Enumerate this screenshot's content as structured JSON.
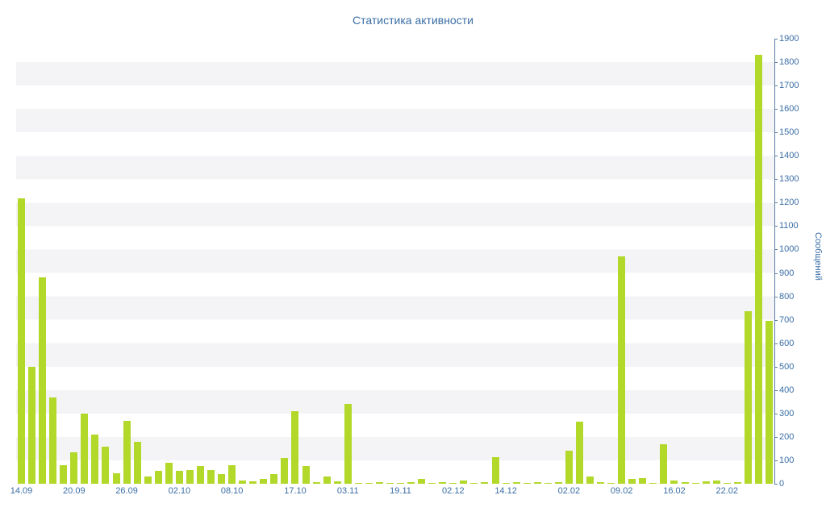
{
  "title": "Статистика активности",
  "colors": {
    "bar": "#b2d82a",
    "stripe": "#f4f4f7",
    "axis": "#5b7fa6",
    "text": "#3a6ea5",
    "background": "#ffffff"
  },
  "chart_data": {
    "type": "bar",
    "title": "Статистика активности",
    "xlabel": "",
    "ylabel": "Сообщений",
    "ylim": [
      0,
      1900
    ],
    "ytick_step": 100,
    "grid": "horizontal alternating stripes per 100 units",
    "legend": "none",
    "yticks": [
      0,
      100,
      200,
      300,
      400,
      500,
      600,
      700,
      800,
      900,
      1000,
      1100,
      1200,
      1300,
      1400,
      1500,
      1600,
      1700,
      1800,
      1900
    ],
    "values": [
      1220,
      500,
      880,
      370,
      80,
      135,
      300,
      210,
      160,
      45,
      270,
      180,
      30,
      55,
      90,
      55,
      60,
      75,
      60,
      40,
      80,
      15,
      10,
      20,
      40,
      110,
      310,
      75,
      8,
      30,
      10,
      340,
      5,
      4,
      6,
      4,
      5,
      6,
      20,
      4,
      6,
      4,
      15,
      4,
      6,
      115,
      5,
      8,
      4,
      6,
      5,
      8,
      140,
      265,
      30,
      8,
      4,
      970,
      20,
      25,
      5,
      170,
      15,
      6,
      4,
      10,
      15,
      4,
      6,
      735,
      1830,
      695
    ],
    "xticks": [
      {
        "index": 0,
        "label": "14.09"
      },
      {
        "index": 5,
        "label": "20.09"
      },
      {
        "index": 10,
        "label": "26.09"
      },
      {
        "index": 15,
        "label": "02.10"
      },
      {
        "index": 20,
        "label": "08.10"
      },
      {
        "index": 26,
        "label": "17.10"
      },
      {
        "index": 31,
        "label": "03.11"
      },
      {
        "index": 36,
        "label": "19.11"
      },
      {
        "index": 41,
        "label": "02.12"
      },
      {
        "index": 46,
        "label": "14.12"
      },
      {
        "index": 52,
        "label": "02.02"
      },
      {
        "index": 57,
        "label": "09.02"
      },
      {
        "index": 62,
        "label": "16.02"
      },
      {
        "index": 67,
        "label": "22.02"
      }
    ]
  }
}
